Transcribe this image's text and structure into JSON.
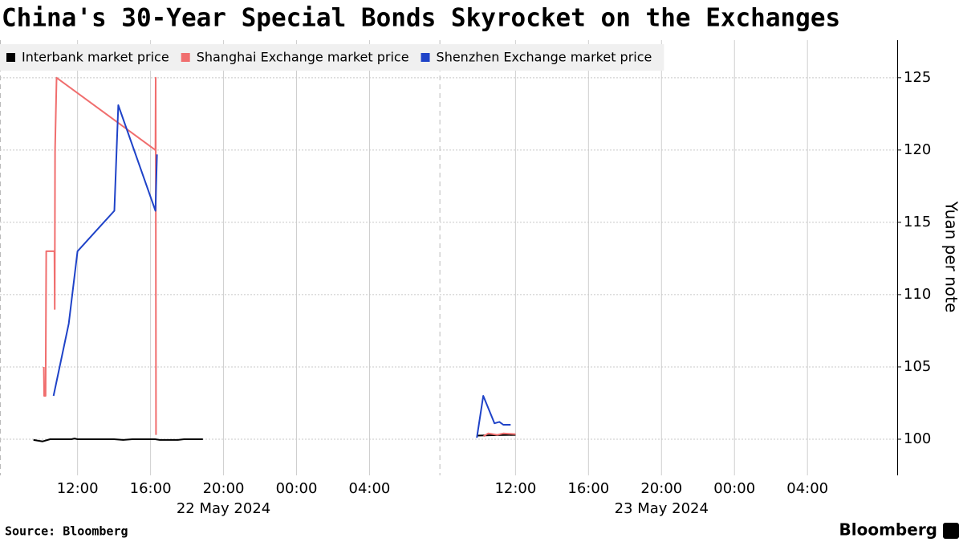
{
  "chart_data": {
    "type": "line",
    "title": "China's 30-Year Special Bonds Skyrocket on the Exchanges",
    "y_label": "Yuan per note",
    "source": "Source: Bloomberg",
    "brand": "Bloomberg",
    "xlim": [
      "2024-05-22T07:45",
      "2024-05-24T08:55"
    ],
    "xticks": [
      {
        "value": "2024-05-22T12:00",
        "label": "12:00"
      },
      {
        "value": "2024-05-22T16:00",
        "label": "16:00"
      },
      {
        "value": "2024-05-22T20:00",
        "label": "20:00"
      },
      {
        "value": "2024-05-23T00:00",
        "label": "00:00"
      },
      {
        "value": "2024-05-23T04:00",
        "label": "04:00"
      },
      {
        "value": "2024-05-23T12:00",
        "label": "12:00"
      },
      {
        "value": "2024-05-23T16:00",
        "label": "16:00"
      },
      {
        "value": "2024-05-23T20:00",
        "label": "20:00"
      },
      {
        "value": "2024-05-24T00:00",
        "label": "00:00"
      },
      {
        "value": "2024-05-24T04:00",
        "label": "04:00"
      }
    ],
    "x_groups": [
      {
        "value": "2024-05-22T20:00",
        "label": "22 May 2024"
      },
      {
        "value": "2024-05-23T20:00",
        "label": "23 May 2024"
      }
    ],
    "x_separators": [
      "2024-05-22T07:45",
      "2024-05-23T07:50"
    ],
    "ylim": [
      97.5,
      127.6
    ],
    "yticks": [
      100,
      105,
      110,
      115,
      120,
      125
    ],
    "grid": true,
    "series": [
      {
        "name": "Interbank market price",
        "color": "#000000",
        "x": [
          "2024-05-22T09:35",
          "2024-05-22T10:05",
          "2024-05-22T10:30",
          "2024-05-22T11:40",
          "2024-05-22T11:50",
          "2024-05-22T12:00",
          "2024-05-22T14:00",
          "2024-05-22T14:30",
          "2024-05-22T15:00",
          "2024-05-22T16:15",
          "2024-05-22T16:30",
          "2024-05-22T17:30",
          "2024-05-22T17:50",
          "2024-05-22T18:52",
          null,
          "2024-05-23T09:53",
          "2024-05-23T11:00",
          "2024-05-23T12:00"
        ],
        "values": [
          99.95,
          99.85,
          100.0,
          100.0,
          100.05,
          100.0,
          100.0,
          99.95,
          100.0,
          100.0,
          99.95,
          99.95,
          100.0,
          100.0,
          null,
          100.25,
          100.28,
          100.3
        ]
      },
      {
        "name": "Shanghai Exchange market price",
        "color": "#f06e6e",
        "x": [
          "2024-05-22T10:09",
          "2024-05-22T10:10",
          "2024-05-22T10:15",
          "2024-05-22T10:17",
          "2024-05-22T10:44",
          "2024-05-22T10:45",
          "2024-05-22T10:46",
          "2024-05-22T10:51",
          "2024-05-22T16:16",
          "2024-05-22T16:17",
          "2024-05-22T16:18",
          null,
          "2024-05-23T10:15",
          "2024-05-23T10:30",
          "2024-05-23T11:00",
          "2024-05-23T11:20",
          "2024-05-23T12:00"
        ],
        "values": [
          105,
          103,
          103,
          113,
          113,
          109,
          120,
          125,
          120,
          125,
          100.3,
          null,
          100.2,
          100.4,
          100.3,
          100.4,
          100.35
        ]
      },
      {
        "name": "Shenzhen Exchange market price",
        "color": "#1f43c8",
        "x": [
          "2024-05-22T10:41",
          "2024-05-22T11:31",
          "2024-05-22T12:00",
          "2024-05-22T14:01",
          "2024-05-22T14:14",
          "2024-05-22T16:16",
          "2024-05-22T16:21",
          null,
          "2024-05-23T09:53",
          "2024-05-23T10:14",
          "2024-05-23T10:51",
          "2024-05-23T11:07",
          "2024-05-23T11:20",
          "2024-05-23T11:44"
        ],
        "values": [
          103,
          108,
          113,
          115.8,
          123.1,
          115.8,
          119.7,
          null,
          100.1,
          103,
          101.1,
          101.2,
          101.0,
          101.0
        ]
      }
    ]
  }
}
